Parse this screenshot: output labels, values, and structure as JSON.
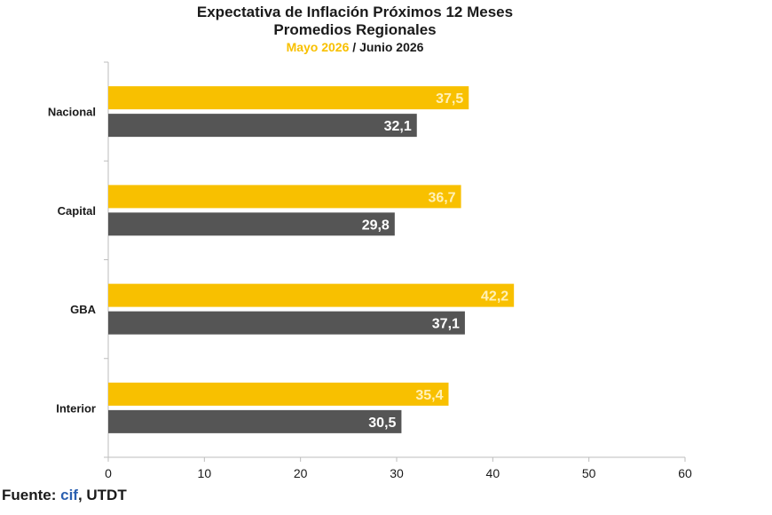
{
  "chart_data": {
    "type": "bar",
    "orientation": "horizontal",
    "title": "Expectativa de Inflación Próximos 12 Meses",
    "subtitle": "Promedios Regionales",
    "categories": [
      "Nacional",
      "Capital",
      "GBA",
      "Interior"
    ],
    "series": [
      {
        "name": "Mayo 2026",
        "values": [
          37.5,
          36.7,
          42.2,
          35.4
        ],
        "color": "#f8c000",
        "label_color": "#fff1b8"
      },
      {
        "name": "Junio 2026",
        "values": [
          32.1,
          29.8,
          37.1,
          30.5
        ],
        "color": "#555555",
        "label_color": "#ffffff"
      }
    ],
    "legend_separator": "/",
    "xlim": [
      0,
      60
    ],
    "xticks": [
      0,
      10,
      20,
      30,
      40,
      50,
      60
    ],
    "grid": false,
    "decimal_separator": ","
  },
  "footer": {
    "prefix": "Fuente: ",
    "brand": "cif",
    "suffix": ", UTDT"
  }
}
